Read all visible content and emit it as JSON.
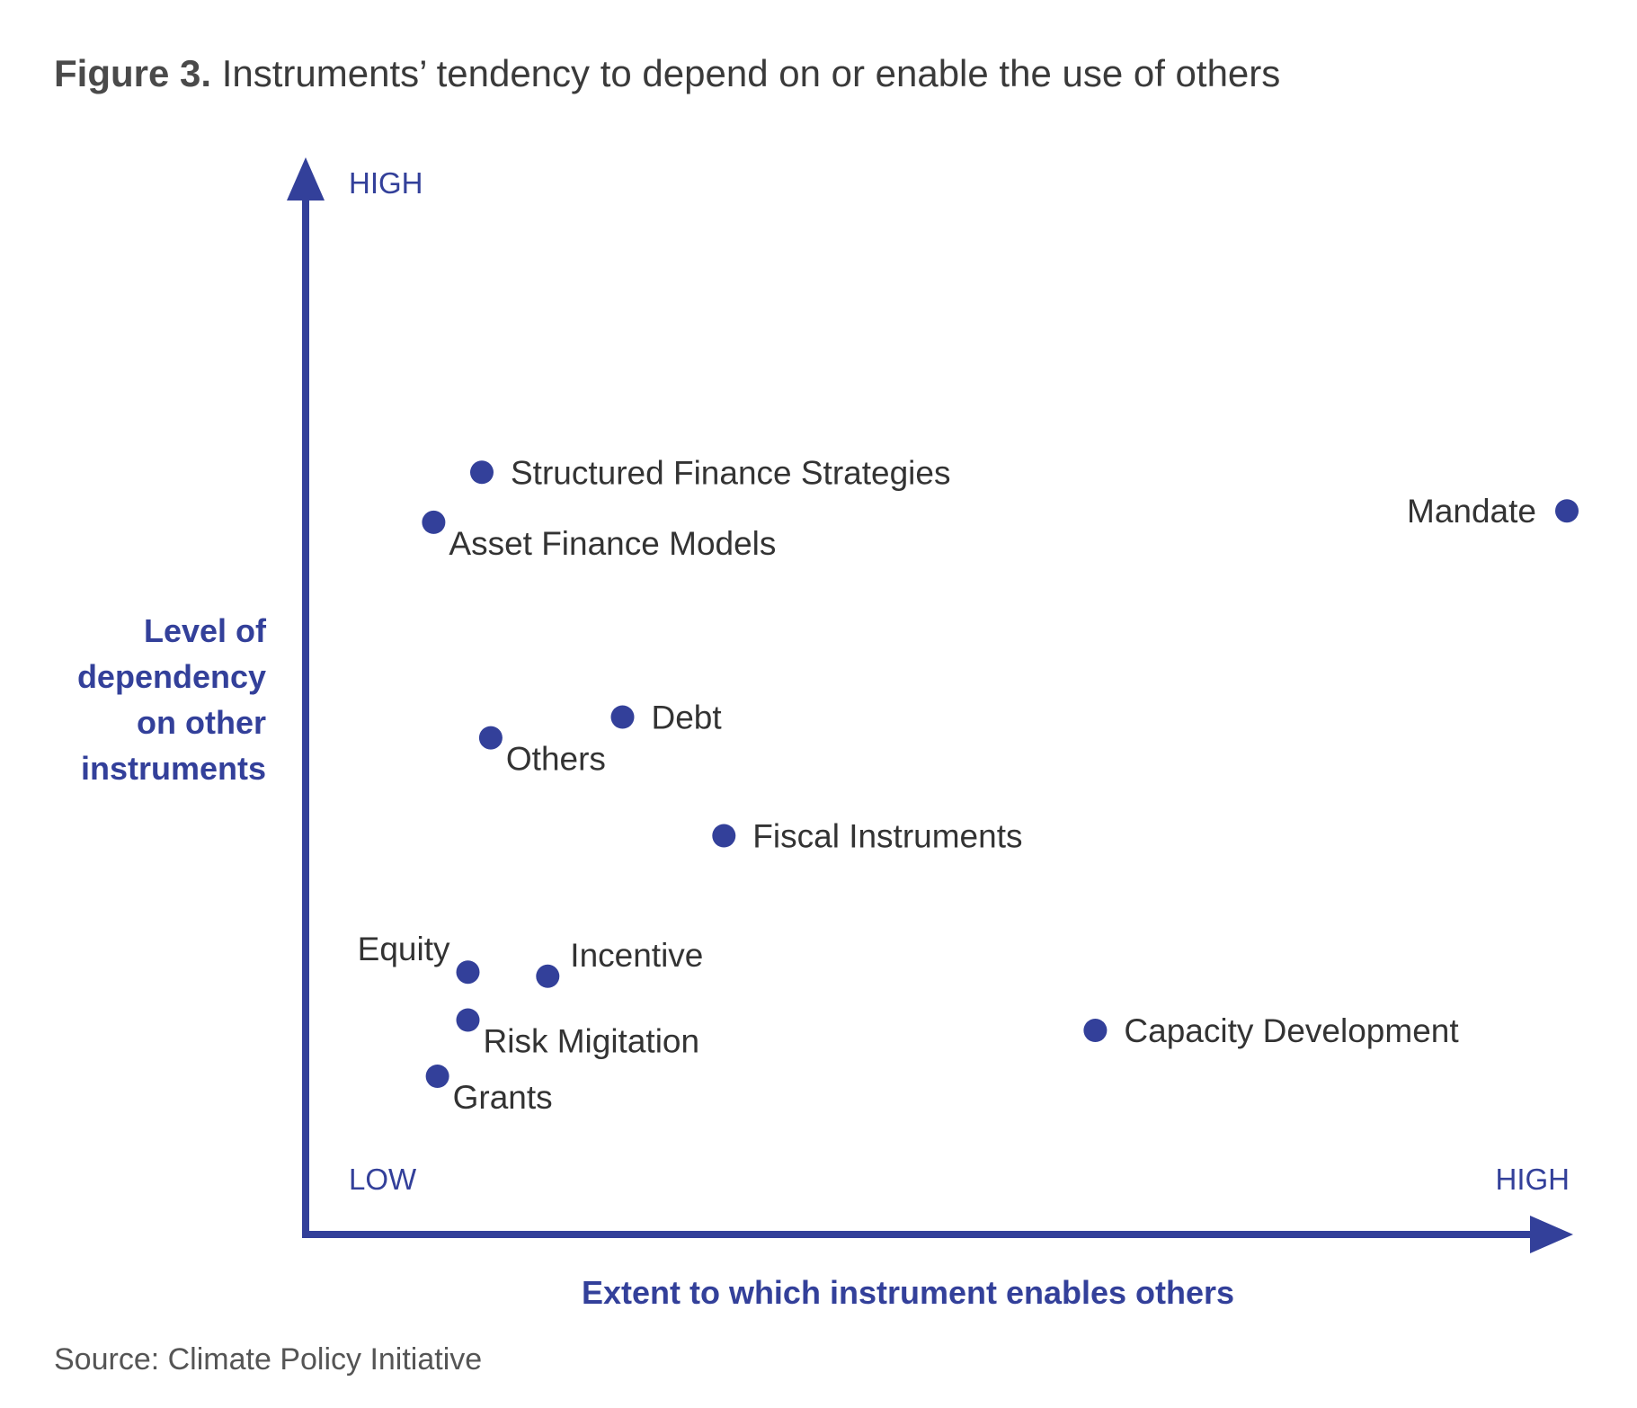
{
  "title": {
    "label": "Figure 3.",
    "text": "Instruments’ tendency to depend on or enable the use of others"
  },
  "source": "Source: Climate Policy Initiative",
  "colors": {
    "accent": "#33409a",
    "text": "#333333",
    "muted": "#555555"
  },
  "chart_data": {
    "type": "scatter",
    "xlabel": "Extent to which instrument enables others",
    "ylabel_lines": [
      "Level of",
      "dependency",
      "on other",
      "instruments"
    ],
    "x_low_label": "LOW",
    "x_high_label": "HIGH",
    "y_high_label": "HIGH",
    "xlim": [
      0,
      100
    ],
    "ylim": [
      0,
      100
    ],
    "grid": false,
    "points": [
      {
        "label": "Structured Finance Strategies",
        "x": 13.9,
        "y": 73.2,
        "label_pos": "right"
      },
      {
        "label": "Asset Finance Models",
        "x": 10.1,
        "y": 68.4,
        "label_pos": "below-right"
      },
      {
        "label": "Mandate",
        "x": 99.5,
        "y": 69.5,
        "label_pos": "left"
      },
      {
        "label": "Debt",
        "x": 25.0,
        "y": 49.7,
        "label_pos": "right"
      },
      {
        "label": "Others",
        "x": 14.6,
        "y": 47.7,
        "label_pos": "below-right"
      },
      {
        "label": "Fiscal Instruments",
        "x": 33.0,
        "y": 38.3,
        "label_pos": "right"
      },
      {
        "label": "Equity",
        "x": 12.8,
        "y": 25.2,
        "label_pos": "above-left"
      },
      {
        "label": "Incentive",
        "x": 19.1,
        "y": 24.8,
        "label_pos": "above-right"
      },
      {
        "label": "Risk Migitation",
        "x": 12.8,
        "y": 20.6,
        "label_pos": "below-right"
      },
      {
        "label": "Capacity Development",
        "x": 62.3,
        "y": 19.6,
        "label_pos": "right"
      },
      {
        "label": "Grants",
        "x": 10.4,
        "y": 15.2,
        "label_pos": "below-right"
      }
    ]
  }
}
